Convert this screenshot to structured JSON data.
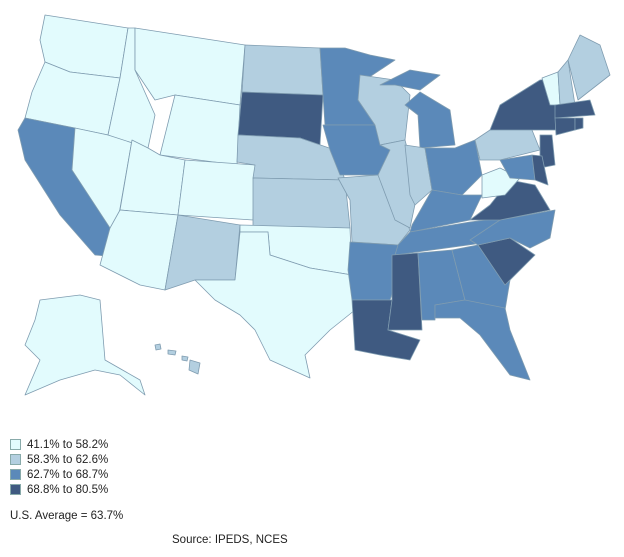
{
  "legend": [
    {
      "label": "41.1% to 58.2%",
      "color": "#e2fbfd"
    },
    {
      "label": "58.3% to 62.6%",
      "color": "#b3cfe0"
    },
    {
      "label": "62.7% to 68.7%",
      "color": "#5b89b9"
    },
    {
      "label": "68.8% to 80.5%",
      "color": "#3f5a81"
    }
  ],
  "average": "U.S. Average = 63.7%",
  "source": "Source: IPEDS, NCES",
  "state_bins": {
    "WA": 0,
    "OR": 0,
    "ID": 0,
    "MT": 0,
    "WY": 0,
    "NV": 0,
    "UT": 0,
    "CO": 0,
    "AZ": 0,
    "TX": 0,
    "OK": 0,
    "WV": 0,
    "VT": 0,
    "AK": 0,
    "ND": 1,
    "NE": 1,
    "KS": 1,
    "NM": 1,
    "WI": 1,
    "IL": 1,
    "MO": 1,
    "IN": 1,
    "PA": 1,
    "NH": 1,
    "ME": 1,
    "HI": 1,
    "CA": 2,
    "MN": 2,
    "IA": 2,
    "MI": 2,
    "OH": 2,
    "KY": 2,
    "TN": 2,
    "AR": 2,
    "AL": 2,
    "GA": 2,
    "FL": 2,
    "NC": 2,
    "MD": 2,
    "SD": 3,
    "LA": 3,
    "MS": 3,
    "SC": 3,
    "VA": 3,
    "NY": 3,
    "NJ": 3,
    "MA": 3,
    "CT": 3,
    "RI": 3,
    "DE": 3
  }
}
